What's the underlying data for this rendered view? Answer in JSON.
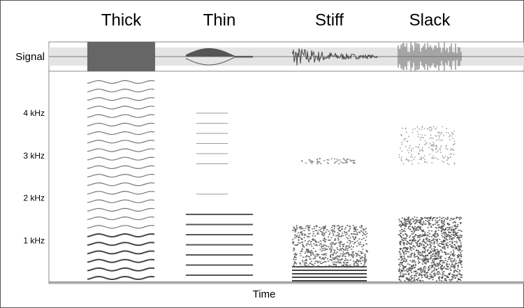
{
  "chart_data": {
    "type": "spectrogram",
    "categories": [
      "Thick",
      "Thin",
      "Stiff",
      "Slack"
    ],
    "signal_label": "Signal",
    "x_label": "Time",
    "ylim": [
      0,
      5
    ],
    "yticks": [
      {
        "value": 1,
        "label": "1 kHz"
      },
      {
        "value": 2,
        "label": "2 kHz"
      },
      {
        "value": 3,
        "label": "3 kHz"
      },
      {
        "value": 4,
        "label": "4 kHz"
      }
    ]
  }
}
